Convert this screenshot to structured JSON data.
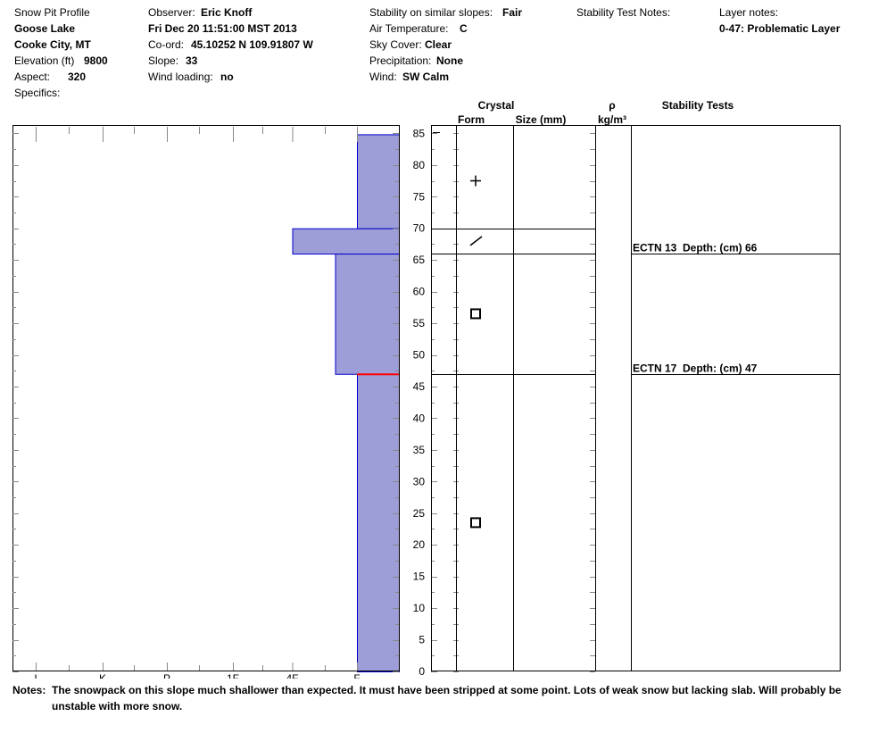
{
  "header": {
    "profile_label": "Snow Pit Profile",
    "location": "Goose Lake",
    "city": "Cooke City, MT",
    "elevation_label": "Elevation (ft)",
    "elevation_value": "9800",
    "aspect_label": "Aspect:",
    "aspect_value": "320",
    "specifics_label": "Specifics:",
    "observer_label": "Observer:",
    "observer_value": "Eric Knoff",
    "datetime": "Fri Dec 20 11:51:00 MST 2013",
    "coord_label": "Co-ord:",
    "coord_value": "45.10252 N 109.91807 W",
    "slope_label": "Slope:",
    "slope_value": "33",
    "wind_loading_label": "Wind loading:",
    "wind_loading_value": "no",
    "stability_label": "Stability on similar slopes:",
    "stability_value": "Fair",
    "air_temp_label": "Air Temperature:",
    "air_temp_value": "C",
    "sky_label": "Sky Cover:",
    "sky_value": "Clear",
    "precip_label": "Precipitation:",
    "precip_value": "None",
    "wind_label": "Wind:",
    "wind_value": "SW Calm",
    "stability_test_notes_label": "Stability Test Notes:",
    "layer_notes_label": "Layer notes:",
    "layer_notes_value": "0-47: Problematic Layer"
  },
  "table_headers": {
    "crystal": "Crystal",
    "form": "Form",
    "size": "Size (mm)",
    "rho": "ρ",
    "density_unit": "kg/m³",
    "stability_tests": "Stability Tests"
  },
  "notes": {
    "label": "Notes:",
    "text": "The snowpack on this slope much shallower than expected. It must have been stripped at some point. Lots of weak snow but lacking slab. Will probably be unstable with more snow."
  },
  "colors": {
    "layer_fill": "#9d9dd7",
    "layer_edge": "#0000cc",
    "weak_layer": "#ff0000"
  },
  "chart_data": {
    "type": "bar",
    "orientation": "horizontal",
    "y_unit": "cm",
    "ylim": [
      0,
      85
    ],
    "yticks": [
      0,
      5,
      10,
      15,
      20,
      25,
      30,
      35,
      40,
      45,
      50,
      55,
      60,
      65,
      70,
      75,
      80,
      85
    ],
    "hardness_scale": [
      "I",
      "K",
      "P",
      "1F",
      "4F",
      "F"
    ],
    "layers": [
      {
        "top": 85,
        "bottom": 70,
        "hardness": "F",
        "form": "+",
        "form_icon": "plus-icon",
        "form_at": 77.5
      },
      {
        "top": 70,
        "bottom": 66,
        "hardness": "4F",
        "form": "/",
        "form_icon": "slash-icon",
        "form_at": 68
      },
      {
        "top": 66,
        "bottom": 47,
        "hardness": "F+",
        "form": "□",
        "form_icon": "square-icon",
        "form_at": 56.5
      },
      {
        "top": 47,
        "bottom": 0,
        "hardness": "F",
        "form": "□",
        "form_icon": "square-icon",
        "form_at": 23.5
      }
    ],
    "weak_layer_depth": 47,
    "stability_tests": [
      {
        "label": "ECTN 13",
        "depth_label": "Depth: (cm) 66",
        "depth": 66
      },
      {
        "label": "ECTN 17",
        "depth_label": "Depth: (cm) 47",
        "depth": 47
      }
    ]
  }
}
